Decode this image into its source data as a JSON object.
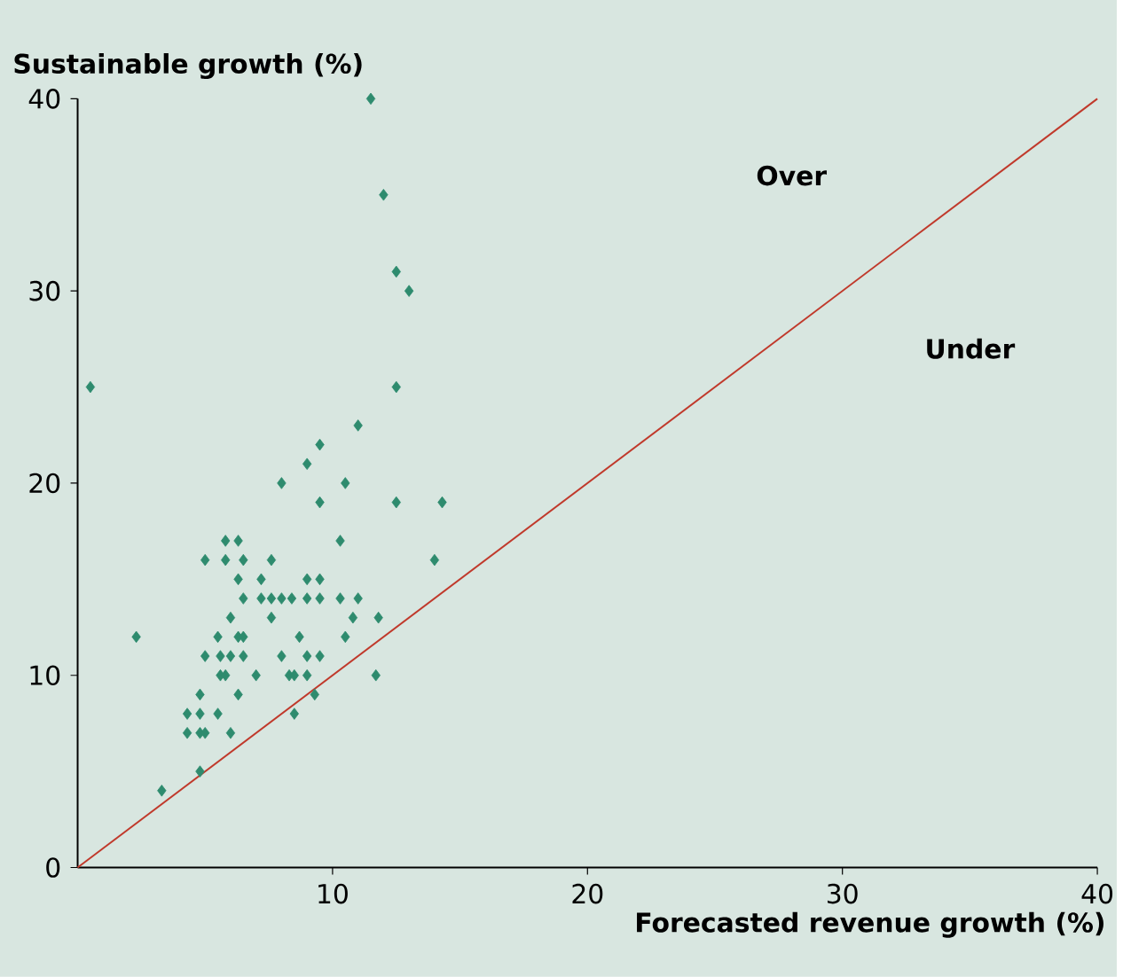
{
  "chart_data": {
    "type": "scatter",
    "xlabel": "Forecasted revenue growth (%)",
    "ylabel": "Sustainable growth (%)",
    "xlim": [
      0,
      40
    ],
    "ylim": [
      0,
      40
    ],
    "xticks": [
      10,
      20,
      30,
      40
    ],
    "yticks": [
      0,
      10,
      20,
      30,
      40
    ],
    "grid": false,
    "annotations": [
      "Over",
      "Under"
    ],
    "series": [
      {
        "color": "#2e8b6e",
        "marker": "diamond",
        "x": [
          0.5,
          11.5,
          12,
          12.5,
          13,
          12.5,
          11,
          9.5,
          9,
          8,
          10.5,
          9.5,
          12.5,
          14.3,
          10.3,
          5.8,
          6.3,
          5,
          5.8,
          6.5,
          7.6,
          14,
          6.3,
          7.2,
          9,
          9.5,
          6.5,
          7.2,
          7.6,
          8,
          8.4,
          9,
          9.5,
          10.3,
          11,
          6,
          7.6,
          10.8,
          11.8,
          2.3,
          5.5,
          6.3,
          6.5,
          8.7,
          10.5,
          5,
          5.6,
          6,
          6.5,
          8,
          9,
          9.5,
          5.6,
          5.8,
          7,
          8.3,
          8.5,
          9,
          11.7,
          4.8,
          6.3,
          9.3,
          4.3,
          4.8,
          5.5,
          8.5,
          4.3,
          4.8,
          5,
          6,
          4.8,
          3.3
        ],
        "values": [
          25,
          40,
          35,
          31,
          30,
          25,
          23,
          22,
          21,
          20,
          20,
          19,
          19,
          19,
          17,
          17,
          17,
          16,
          16,
          16,
          16,
          16,
          15,
          15,
          15,
          15,
          14,
          14,
          14,
          14,
          14,
          14,
          14,
          14,
          14,
          13,
          13,
          13,
          13,
          12,
          12,
          12,
          12,
          12,
          12,
          11,
          11,
          11,
          11,
          11,
          11,
          11,
          10,
          10,
          10,
          10,
          10,
          10,
          10,
          9,
          9,
          9,
          8,
          8,
          8,
          8,
          7,
          7,
          7,
          7,
          5,
          4
        ]
      },
      {
        "type": "line",
        "color": "#c0392b",
        "line_style": "solid",
        "x": [
          0,
          40
        ],
        "values": [
          0,
          40
        ]
      }
    ]
  }
}
